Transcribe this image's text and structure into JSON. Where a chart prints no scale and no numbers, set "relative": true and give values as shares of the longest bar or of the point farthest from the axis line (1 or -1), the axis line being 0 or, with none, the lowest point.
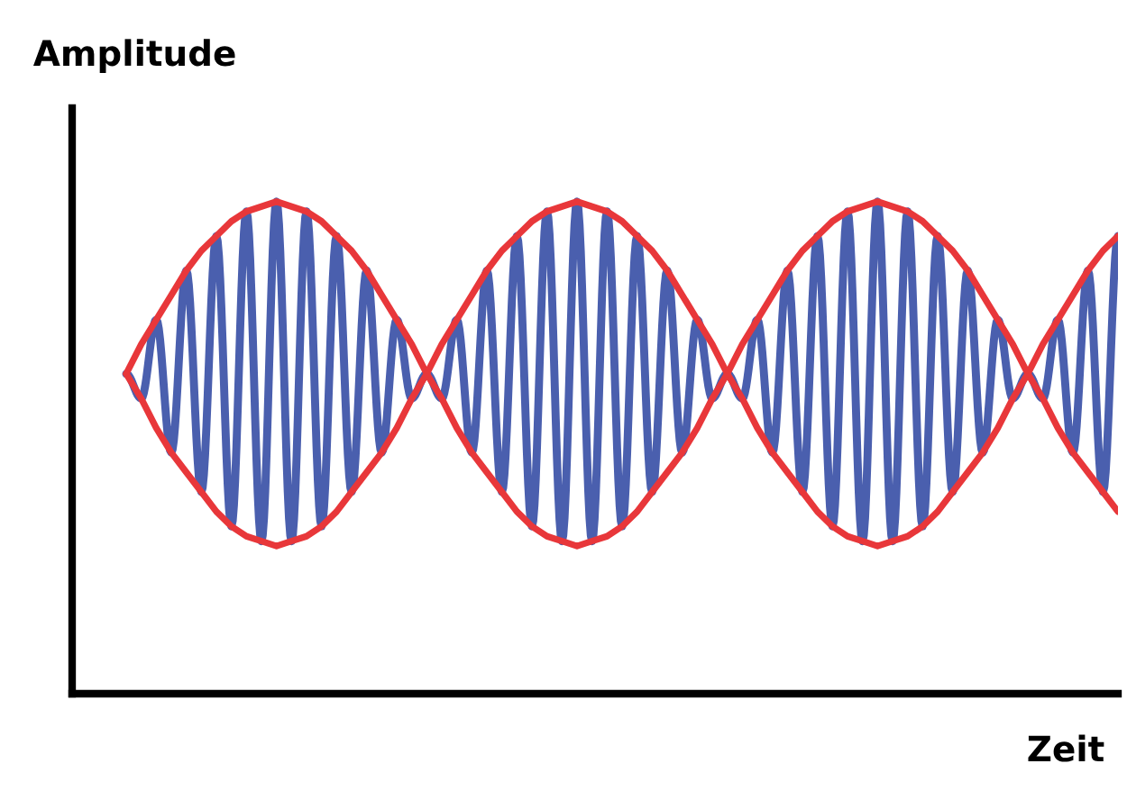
{
  "chart_data": {
    "type": "line",
    "xlabel": "Zeit",
    "ylabel": "Amplitude",
    "relative": true,
    "marker": "none",
    "line_style": "solid",
    "categories": [
      null,
      null,
      null,
      null,
      null,
      null,
      null,
      null,
      null,
      null,
      null,
      null,
      null,
      null,
      null,
      null,
      null,
      null,
      null,
      null,
      null,
      null,
      null,
      null,
      null,
      null,
      null,
      null,
      null,
      null,
      null,
      null,
      null,
      null,
      null,
      null,
      null,
      null,
      null,
      null,
      null,
      null,
      null,
      null,
      null,
      null,
      null,
      null,
      null,
      null,
      null,
      null,
      null,
      null,
      null,
      null,
      null,
      null,
      null,
      null,
      null,
      null,
      null,
      null,
      null,
      null,
      null
    ],
    "series": [
      {
        "color": "#4a5fae",
        "values": [
          0.65,
          0.6,
          0.76,
          0.49,
          0.86,
          0.41,
          0.93,
          0.34,
          0.98,
          0.31,
          1.0,
          0.31,
          0.98,
          0.34,
          0.93,
          0.41,
          0.86,
          0.49,
          0.76,
          0.6,
          0.65,
          0.6,
          0.76,
          0.49,
          0.86,
          0.41,
          0.93,
          0.34,
          0.98,
          0.31,
          1.0,
          0.31,
          0.98,
          0.34,
          0.93,
          0.41,
          0.86,
          0.49,
          0.76,
          0.6,
          0.65,
          0.6,
          0.76,
          0.49,
          0.86,
          0.41,
          0.93,
          0.34,
          0.98,
          0.31,
          1.0,
          0.31,
          0.98,
          0.34,
          0.93,
          0.41,
          0.86,
          0.49,
          0.76,
          0.6,
          0.65,
          0.6,
          0.76,
          0.49,
          0.86,
          0.41,
          0.93
        ]
      },
      {
        "color": "#e8373a",
        "values": [
          0.65,
          0.71,
          0.76,
          0.81,
          0.86,
          0.9,
          0.93,
          0.96,
          0.98,
          0.99,
          1.0,
          0.99,
          0.98,
          0.96,
          0.93,
          0.9,
          0.86,
          0.81,
          0.76,
          0.71,
          0.65,
          0.71,
          0.76,
          0.81,
          0.86,
          0.9,
          0.93,
          0.96,
          0.98,
          0.99,
          1.0,
          0.99,
          0.98,
          0.96,
          0.93,
          0.9,
          0.86,
          0.81,
          0.76,
          0.71,
          0.65,
          0.71,
          0.76,
          0.81,
          0.86,
          0.9,
          0.93,
          0.96,
          0.98,
          0.99,
          1.0,
          0.99,
          0.98,
          0.96,
          0.93,
          0.9,
          0.86,
          0.81,
          0.76,
          0.71,
          0.65,
          0.71,
          0.76,
          0.81,
          0.86,
          0.9,
          0.93
        ]
      },
      {
        "color": "#e8373a",
        "values": [
          0.65,
          0.6,
          0.54,
          0.49,
          0.45,
          0.41,
          0.37,
          0.34,
          0.32,
          0.31,
          0.3,
          0.31,
          0.32,
          0.34,
          0.37,
          0.41,
          0.45,
          0.49,
          0.54,
          0.6,
          0.65,
          0.6,
          0.54,
          0.49,
          0.45,
          0.41,
          0.37,
          0.34,
          0.32,
          0.31,
          0.3,
          0.31,
          0.32,
          0.34,
          0.37,
          0.41,
          0.45,
          0.49,
          0.54,
          0.6,
          0.65,
          0.6,
          0.54,
          0.49,
          0.45,
          0.41,
          0.37,
          0.34,
          0.32,
          0.31,
          0.3,
          0.31,
          0.32,
          0.34,
          0.37,
          0.41,
          0.45,
          0.49,
          0.54,
          0.6,
          0.65,
          0.6,
          0.54,
          0.49,
          0.45,
          0.41,
          0.37
        ]
      }
    ]
  }
}
